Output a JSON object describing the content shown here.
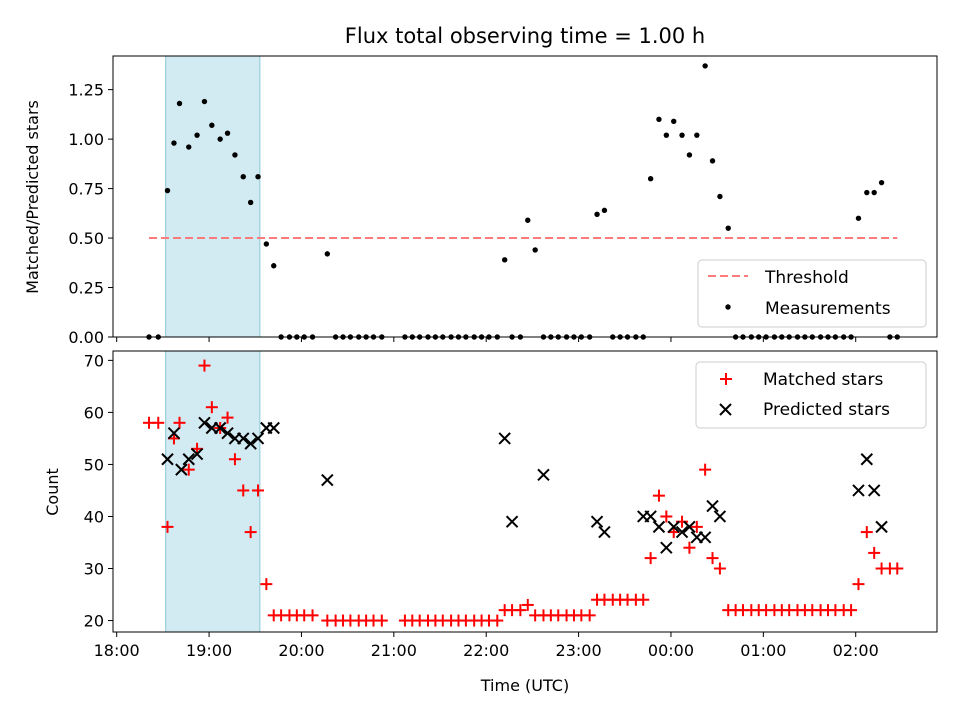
{
  "chart_data": [
    {
      "type": "scatter",
      "title": "Flux total observing time = 1.00 h",
      "xlabel": "",
      "ylabel": "Matched/Predicted stars",
      "ylim": [
        0,
        1.42
      ],
      "x_unit": "hours since 18:00 UTC",
      "x_tick_labels": [],
      "y_ticks": [
        {
          "value": 0.0,
          "label": "0.00"
        },
        {
          "value": 0.25,
          "label": "0.25"
        },
        {
          "value": 0.5,
          "label": "0.50"
        },
        {
          "value": 0.75,
          "label": "0.75"
        },
        {
          "value": 1.0,
          "label": "1.00"
        },
        {
          "value": 1.25,
          "label": "1.25"
        }
      ],
      "shaded_interval": {
        "x": [
          0.53,
          1.55
        ],
        "color": "#add8e6"
      },
      "threshold": {
        "name": "Threshold",
        "y": 0.5,
        "x": [
          0.35,
          8.45
        ],
        "color": "#ff7a7a"
      },
      "series": [
        {
          "name": "Measurements",
          "color": "#000000",
          "x": [
            0.35,
            0.45,
            0.55,
            0.62,
            0.68,
            0.78,
            0.87,
            0.95,
            1.03,
            1.12,
            1.2,
            1.28,
            1.37,
            1.45,
            1.53,
            1.62,
            1.7,
            1.78,
            1.87,
            1.95,
            2.03,
            2.12,
            2.28,
            2.37,
            2.45,
            2.53,
            2.62,
            2.7,
            2.78,
            2.87,
            3.12,
            3.2,
            3.28,
            3.37,
            3.45,
            3.53,
            3.62,
            3.7,
            3.78,
            3.87,
            3.95,
            4.03,
            4.12,
            4.2,
            4.28,
            4.37,
            4.45,
            4.53,
            4.62,
            4.7,
            4.78,
            4.87,
            4.95,
            5.03,
            5.12,
            5.2,
            5.28,
            5.37,
            5.45,
            5.53,
            5.62,
            5.7,
            5.78,
            5.87,
            5.95,
            6.03,
            6.12,
            6.2,
            6.28,
            6.37,
            6.45,
            6.53,
            6.62,
            6.7,
            6.78,
            6.87,
            6.95,
            7.03,
            7.12,
            7.2,
            7.28,
            7.37,
            7.45,
            7.53,
            7.62,
            7.7,
            7.78,
            7.87,
            7.95,
            8.03,
            8.12,
            8.2,
            8.28,
            8.37,
            8.45
          ],
          "y": [
            0,
            0,
            0.74,
            0.98,
            1.18,
            0.96,
            1.02,
            1.19,
            1.07,
            1.0,
            1.03,
            0.92,
            0.81,
            0.68,
            0.81,
            0.47,
            0.36,
            0,
            0,
            0,
            0,
            0,
            0.42,
            0,
            0,
            0,
            0,
            0,
            0,
            0,
            0,
            0,
            0,
            0,
            0,
            0,
            0,
            0,
            0,
            0,
            0,
            0,
            0,
            0.39,
            0,
            0,
            0.59,
            0.44,
            0,
            0,
            0,
            0,
            0,
            0,
            0,
            0.62,
            0.64,
            0,
            0,
            0,
            0,
            0,
            0.8,
            1.1,
            1.02,
            1.09,
            1.02,
            0.92,
            1.02,
            1.37,
            0.89,
            0.71,
            0.55,
            0,
            0,
            0,
            0,
            0,
            0,
            0,
            0,
            0,
            0,
            0,
            0,
            0,
            0,
            0,
            0,
            0.6,
            0.73,
            0.73,
            0.78,
            0,
            0
          ]
        }
      ],
      "legend": [
        "Threshold",
        "Measurements"
      ],
      "legend_position": "lower-right"
    },
    {
      "type": "scatter",
      "title": "",
      "xlabel": "Time (UTC)",
      "ylabel": "Count",
      "ylim": [
        17.8,
        71.8
      ],
      "x_unit": "hours since 18:00 UTC",
      "x_tick_labels": [
        {
          "value": 0,
          "label": "18:00"
        },
        {
          "value": 1,
          "label": "19:00"
        },
        {
          "value": 2,
          "label": "20:00"
        },
        {
          "value": 3,
          "label": "21:00"
        },
        {
          "value": 4,
          "label": "22:00"
        },
        {
          "value": 5,
          "label": "23:00"
        },
        {
          "value": 6,
          "label": "00:00"
        },
        {
          "value": 7,
          "label": "01:00"
        },
        {
          "value": 8,
          "label": "02:00"
        }
      ],
      "y_ticks": [
        {
          "value": 20,
          "label": "20"
        },
        {
          "value": 30,
          "label": "30"
        },
        {
          "value": 40,
          "label": "40"
        },
        {
          "value": 50,
          "label": "50"
        },
        {
          "value": 60,
          "label": "60"
        },
        {
          "value": 70,
          "label": "70"
        }
      ],
      "shaded_interval": {
        "x": [
          0.53,
          1.55
        ],
        "color": "#add8e6"
      },
      "series": [
        {
          "name": "Matched stars",
          "marker": "+",
          "color": "#ff0000",
          "x": [
            0.35,
            0.45,
            0.55,
            0.62,
            0.68,
            0.78,
            0.87,
            0.95,
            1.03,
            1.12,
            1.2,
            1.28,
            1.37,
            1.45,
            1.53,
            1.62,
            1.7,
            1.78,
            1.87,
            1.95,
            2.03,
            2.12,
            2.28,
            2.37,
            2.45,
            2.53,
            2.62,
            2.7,
            2.78,
            2.87,
            3.12,
            3.2,
            3.28,
            3.37,
            3.45,
            3.53,
            3.62,
            3.7,
            3.78,
            3.87,
            3.95,
            4.03,
            4.12,
            4.2,
            4.28,
            4.37,
            4.45,
            4.53,
            4.62,
            4.7,
            4.78,
            4.87,
            4.95,
            5.03,
            5.12,
            5.2,
            5.28,
            5.37,
            5.45,
            5.53,
            5.62,
            5.7,
            5.78,
            5.87,
            5.95,
            6.03,
            6.12,
            6.2,
            6.28,
            6.37,
            6.45,
            6.53,
            6.62,
            6.7,
            6.78,
            6.87,
            6.95,
            7.03,
            7.12,
            7.2,
            7.28,
            7.37,
            7.45,
            7.53,
            7.62,
            7.7,
            7.78,
            7.87,
            7.95,
            8.03,
            8.12,
            8.2,
            8.28,
            8.37,
            8.45
          ],
          "y": [
            58,
            58,
            38,
            55,
            58,
            49,
            53,
            69,
            61,
            57,
            59,
            51,
            45,
            37,
            45,
            27,
            21,
            21,
            21,
            21,
            21,
            21,
            20,
            20,
            20,
            20,
            20,
            20,
            20,
            20,
            20,
            20,
            20,
            20,
            20,
            20,
            20,
            20,
            20,
            20,
            20,
            20,
            20,
            22,
            22,
            22,
            23,
            21,
            21,
            21,
            21,
            21,
            21,
            21,
            21,
            24,
            24,
            24,
            24,
            24,
            24,
            24,
            32,
            44,
            40,
            37,
            39,
            34,
            38,
            49,
            32,
            30,
            22,
            22,
            22,
            22,
            22,
            22,
            22,
            22,
            22,
            22,
            22,
            22,
            22,
            22,
            22,
            22,
            22,
            27,
            37,
            33,
            30,
            30,
            30
          ]
        },
        {
          "name": "Predicted stars",
          "marker": "x",
          "color": "#000000",
          "x": [
            0.55,
            0.62,
            0.7,
            0.78,
            0.87,
            0.95,
            1.03,
            1.12,
            1.2,
            1.28,
            1.37,
            1.45,
            1.53,
            1.62,
            1.7,
            2.28,
            4.2,
            4.28,
            4.62,
            4.7,
            4.78,
            4.87,
            5.12,
            5.2,
            5.28,
            5.37,
            5.45,
            5.53,
            5.62,
            5.7,
            5.78,
            5.87,
            5.95,
            6.03,
            6.12,
            6.2,
            6.28,
            6.37,
            6.45,
            6.53,
            6.62,
            6.7,
            6.78,
            6.87,
            6.95,
            7.03,
            7.12,
            7.2,
            7.28,
            7.37,
            7.45,
            7.53,
            7.62,
            7.7,
            7.78,
            7.87,
            7.95,
            8.03,
            8.12,
            8.2,
            8.28,
            8.37,
            8.45
          ],
          "y": [
            51,
            56,
            49,
            51,
            52,
            58,
            57,
            57,
            56,
            55,
            55,
            54,
            55,
            57,
            57,
            47,
            55,
            39,
            48,
            null,
            null,
            null,
            null,
            39,
            37,
            null,
            null,
            null,
            null,
            40,
            40,
            38,
            34,
            38,
            37,
            38,
            36,
            36,
            42,
            40,
            null,
            null,
            null,
            null,
            null,
            null,
            null,
            null,
            null,
            null,
            null,
            null,
            null,
            null,
            null,
            null,
            null,
            45,
            51,
            45,
            38,
            null,
            null
          ]
        }
      ],
      "legend": [
        "Matched stars",
        "Predicted stars"
      ],
      "legend_position": "upper-right"
    }
  ]
}
